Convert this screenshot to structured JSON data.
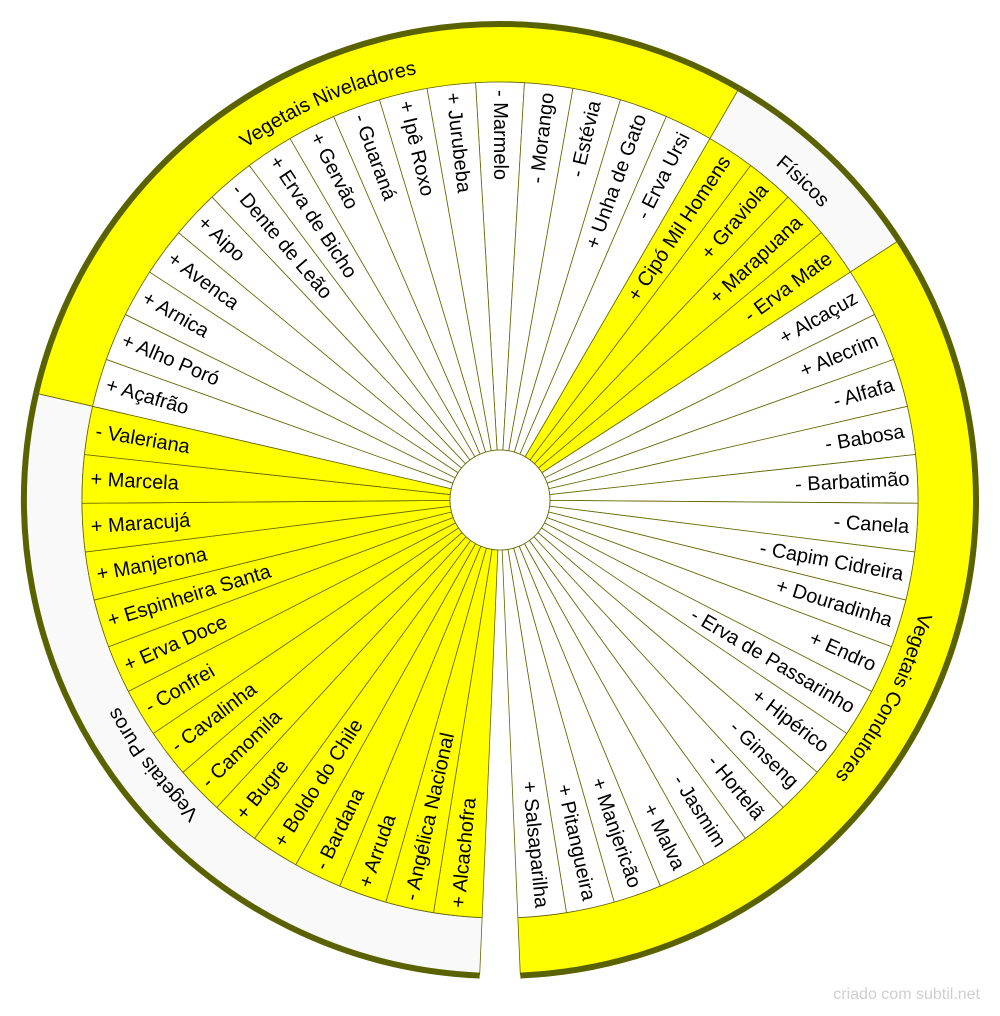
{
  "colors": {
    "yellow": "#ffff00",
    "white": "#ffffff",
    "gray": "#f9f9f9",
    "stroke": "#666600",
    "border": "#5a6200"
  },
  "items": [
    "- Marmelo",
    "- Morango",
    "- Estévia",
    "+ Unha de Gato",
    "- Erva Ursi",
    "+ Cipó Mil Homens",
    "+ Graviola",
    "+ Marapuana",
    "- Erva Mate",
    "+ Alcaçuz",
    "+ Alecrim",
    "- Alfafa",
    "- Babosa",
    "- Barbatimão",
    "- Canela",
    "- Capim Cidreira",
    "+ Douradinha",
    "+ Endro",
    "- Erva de Passarinho",
    "+ Hipérico",
    "- Ginseng",
    "- Hortelã",
    "- Jasmim",
    "+ Malva",
    "+ Manjericão",
    "+ Pitangueira",
    "+ Salsaparilha",
    "+ Alcachofra",
    "- Angélica Nacional",
    "+ Arruda",
    "- Bardana",
    "+ Boldo do Chile",
    "+ Bugre",
    "- Camomila",
    "- Cavalinha",
    "- Confrei",
    "+ Erva Doce",
    "+ Espinheira Santa",
    "+ Manjerona",
    "+ Maracujá",
    "+ Marcela",
    "- Valeriana",
    "+ Açafrão",
    "+ Alho Poró",
    "+ Arnica",
    "+ Avenca",
    "+ Aipo",
    "- Dente de Leão",
    "+ Erva de Bicho",
    "+ Gervão",
    "- Guaraná",
    "+ Ipê Roxo",
    "+ Jurubeba"
  ],
  "groups": [
    {
      "label": "Vegetais Niveladores",
      "first_item": 42,
      "last_item": 4,
      "ring_color": "#ffff00",
      "item_color": "#ffffff"
    },
    {
      "label": "Físicos",
      "first_item": 5,
      "last_item": 8,
      "ring_color": "#f9f9f9",
      "item_color": "#ffff00"
    },
    {
      "label": "Vegetais Condutores",
      "first_item": 9,
      "last_item": 26,
      "ring_color": "#ffff00",
      "item_color": "#ffffff"
    },
    {
      "label": "Vegetais Puros",
      "first_item": 27,
      "last_item": 41,
      "ring_color": "#f9f9f9",
      "item_color": "#ffff00"
    }
  ],
  "watermark": "criado com subtil.net"
}
